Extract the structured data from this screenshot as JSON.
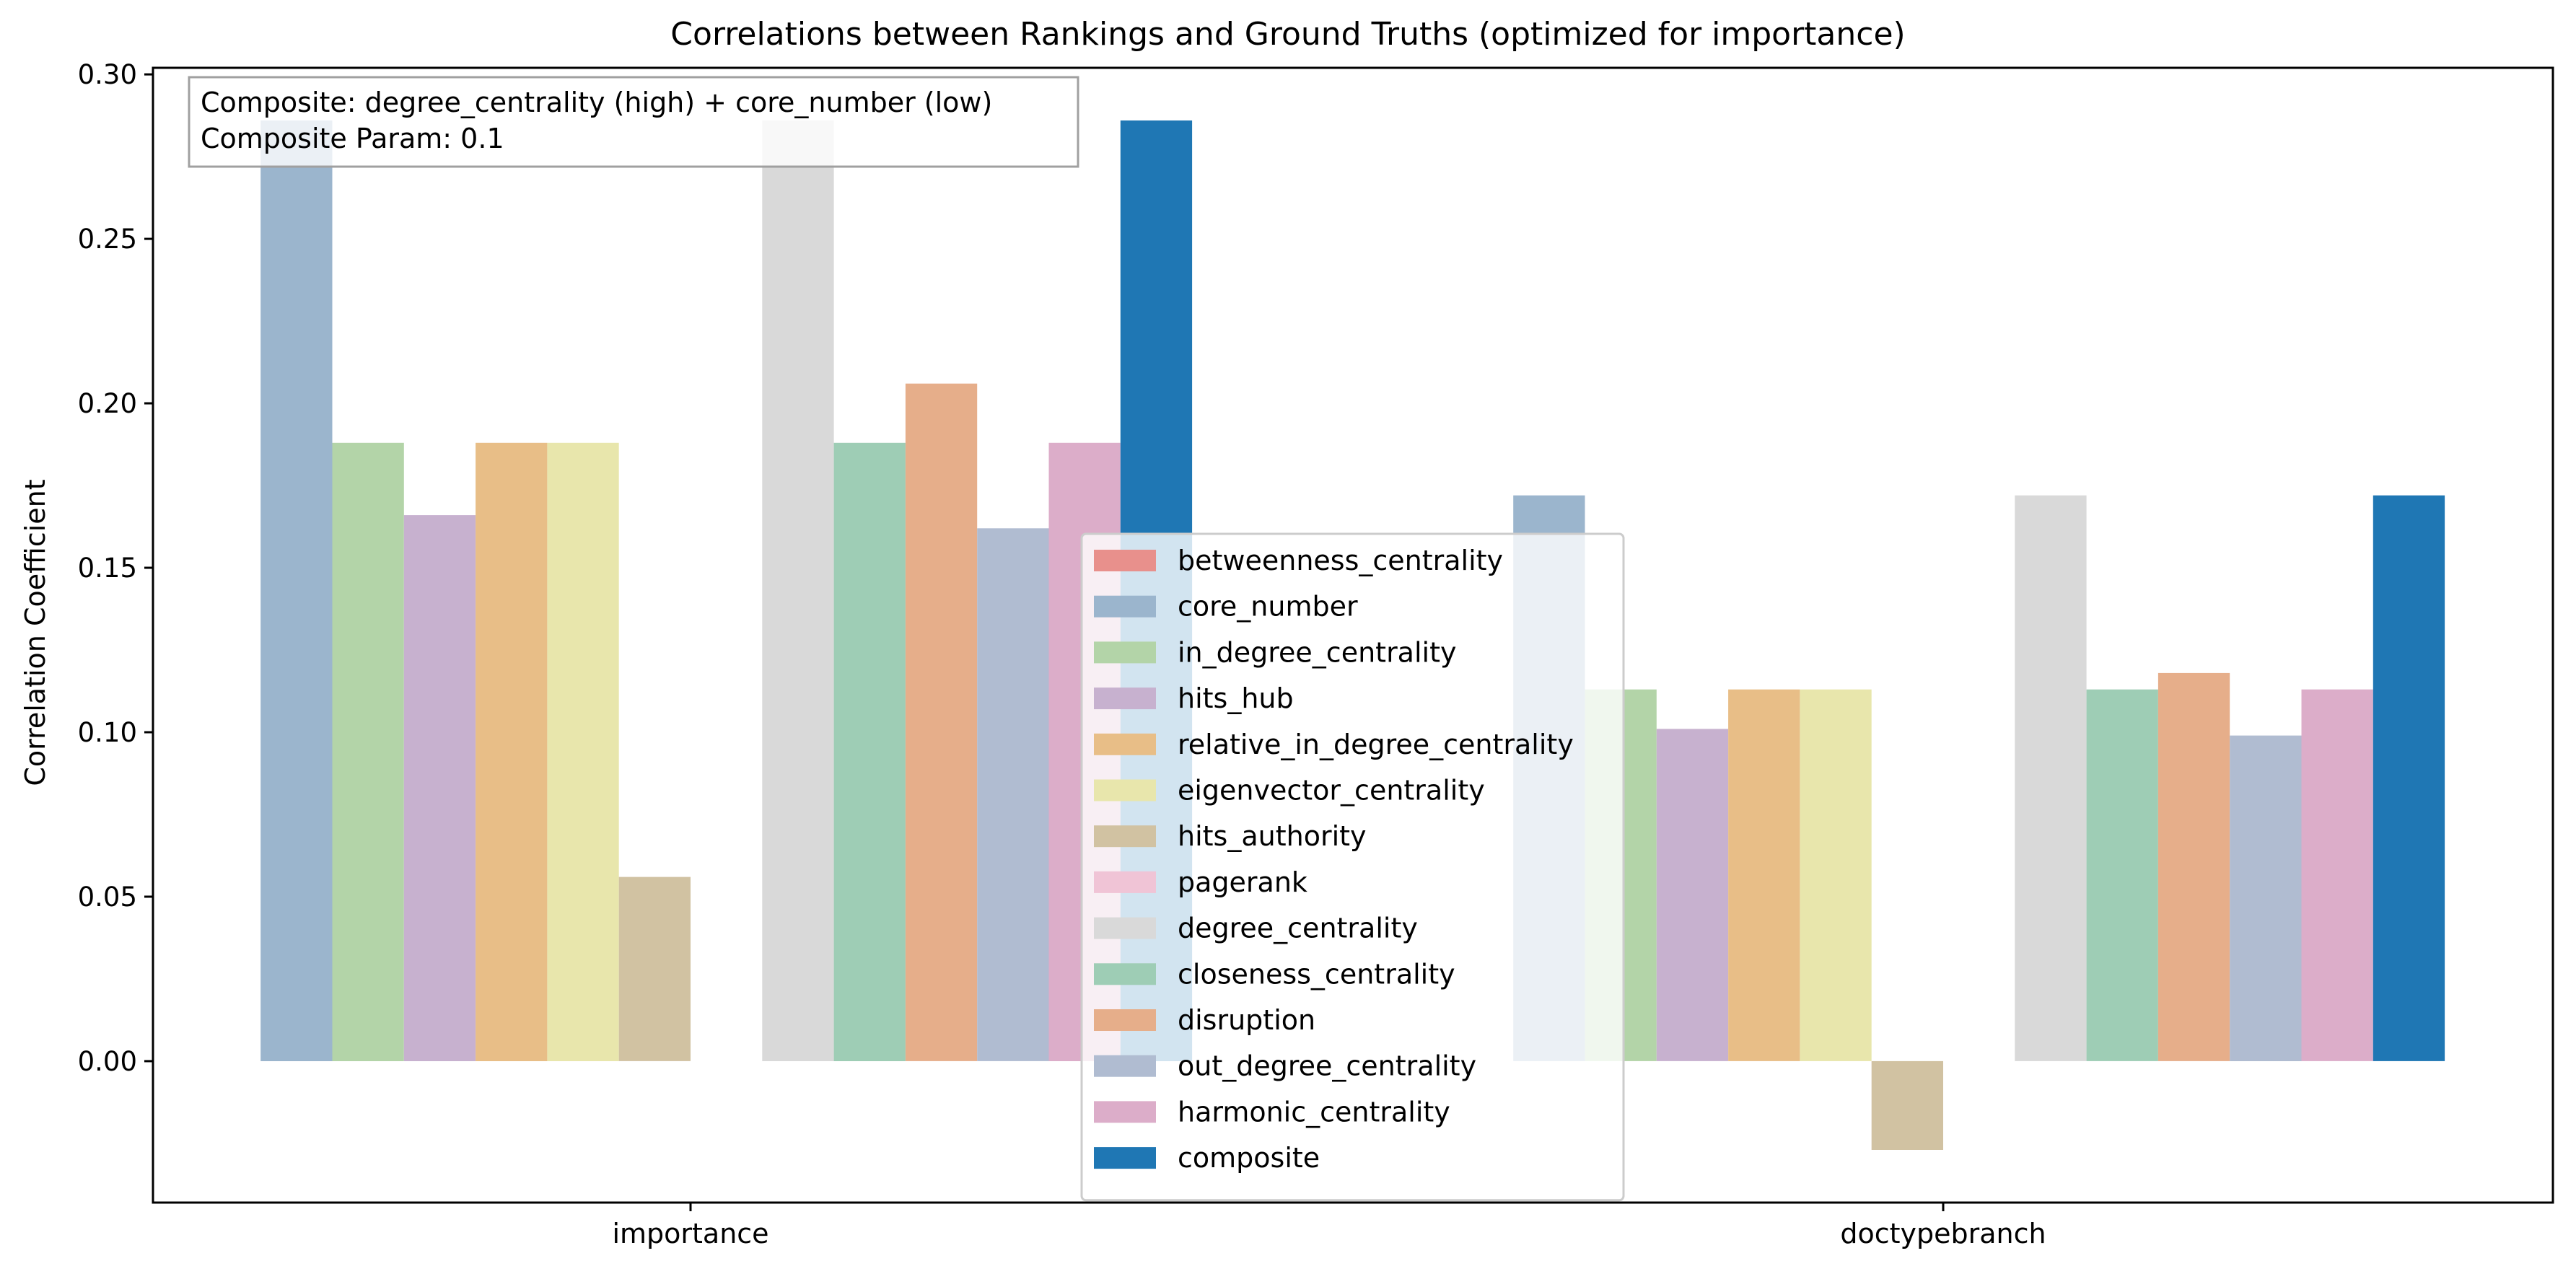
{
  "chart_data": {
    "type": "bar",
    "title": "Correlations between Rankings and Ground Truths (optimized for importance)",
    "xlabel": "",
    "ylabel": "Correlation Coefficient",
    "ylim": [
      -0.043,
      0.302
    ],
    "yticks": [
      "0.00",
      "0.05",
      "0.10",
      "0.15",
      "0.20",
      "0.25",
      "0.30"
    ],
    "ytick_values": [
      0.0,
      0.05,
      0.1,
      0.15,
      0.2,
      0.25,
      0.3
    ],
    "categories": [
      "importance",
      "doctypebranch"
    ],
    "grid": false,
    "legend_position": "lower center",
    "annotation": {
      "line1": "Composite: degree_centrality (high) + core_number (low)",
      "line2": "Composite Param: 0.1"
    },
    "series": [
      {
        "name": "betweenness_centrality",
        "color": "#e8908c",
        "values": [
          0.0,
          0.0
        ]
      },
      {
        "name": "core_number",
        "color": "#9bb5cd",
        "values": [
          0.286,
          0.172
        ]
      },
      {
        "name": "in_degree_centrality",
        "color": "#b3d4a8",
        "values": [
          0.188,
          0.113
        ]
      },
      {
        "name": "hits_hub",
        "color": "#c7b1cf",
        "values": [
          0.166,
          0.101
        ]
      },
      {
        "name": "relative_in_degree_centrality",
        "color": "#e8be87",
        "values": [
          0.188,
          0.113
        ]
      },
      {
        "name": "eigenvector_centrality",
        "color": "#e8e6ac",
        "values": [
          0.188,
          0.113
        ]
      },
      {
        "name": "hits_authority",
        "color": "#d1c2a2",
        "values": [
          0.056,
          -0.027
        ]
      },
      {
        "name": "pagerank",
        "color": "#f0c4d6",
        "values": [
          0.0,
          0.0
        ]
      },
      {
        "name": "degree_centrality",
        "color": "#d9d9d9",
        "values": [
          0.286,
          0.172
        ]
      },
      {
        "name": "closeness_centrality",
        "color": "#9ecdb5",
        "values": [
          0.188,
          0.113
        ]
      },
      {
        "name": "disruption",
        "color": "#e6ae8a",
        "values": [
          0.206,
          0.118
        ]
      },
      {
        "name": "out_degree_centrality",
        "color": "#b0bcd1",
        "values": [
          0.162,
          0.099
        ]
      },
      {
        "name": "harmonic_centrality",
        "color": "#dcadc9",
        "values": [
          0.188,
          0.113
        ]
      },
      {
        "name": "composite",
        "color": "#1f77b4",
        "values": [
          0.286,
          0.172
        ]
      }
    ]
  }
}
